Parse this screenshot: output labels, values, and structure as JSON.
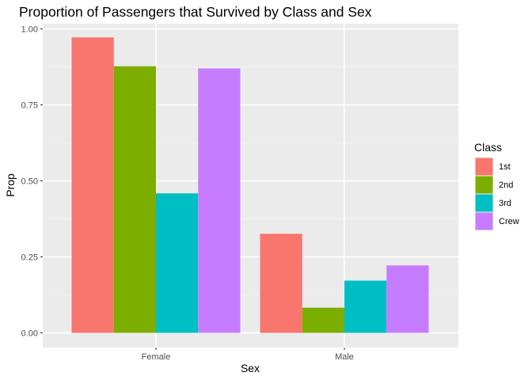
{
  "chart_data": {
    "type": "bar",
    "title": "Proportion of Passengers that Survived by Class and Sex",
    "xlabel": "Sex",
    "ylabel": "Prop",
    "categories": [
      "Female",
      "Male"
    ],
    "ylim": [
      0,
      1.0
    ],
    "yticks": [
      0.0,
      0.25,
      0.5,
      0.75,
      1.0
    ],
    "ytick_labels": [
      "0.00",
      "0.25",
      "0.50",
      "0.75",
      "1.00"
    ],
    "grid": true,
    "legend": {
      "title": "Class",
      "position": "right"
    },
    "series": [
      {
        "name": "1st",
        "color": "#F8766D",
        "values": [
          0.972,
          0.326
        ]
      },
      {
        "name": "2nd",
        "color": "#7CAE00",
        "values": [
          0.877,
          0.083
        ]
      },
      {
        "name": "3rd",
        "color": "#00BFC4",
        "values": [
          0.459,
          0.172
        ]
      },
      {
        "name": "Crew",
        "color": "#C77CFF",
        "values": [
          0.87,
          0.222
        ]
      }
    ]
  }
}
